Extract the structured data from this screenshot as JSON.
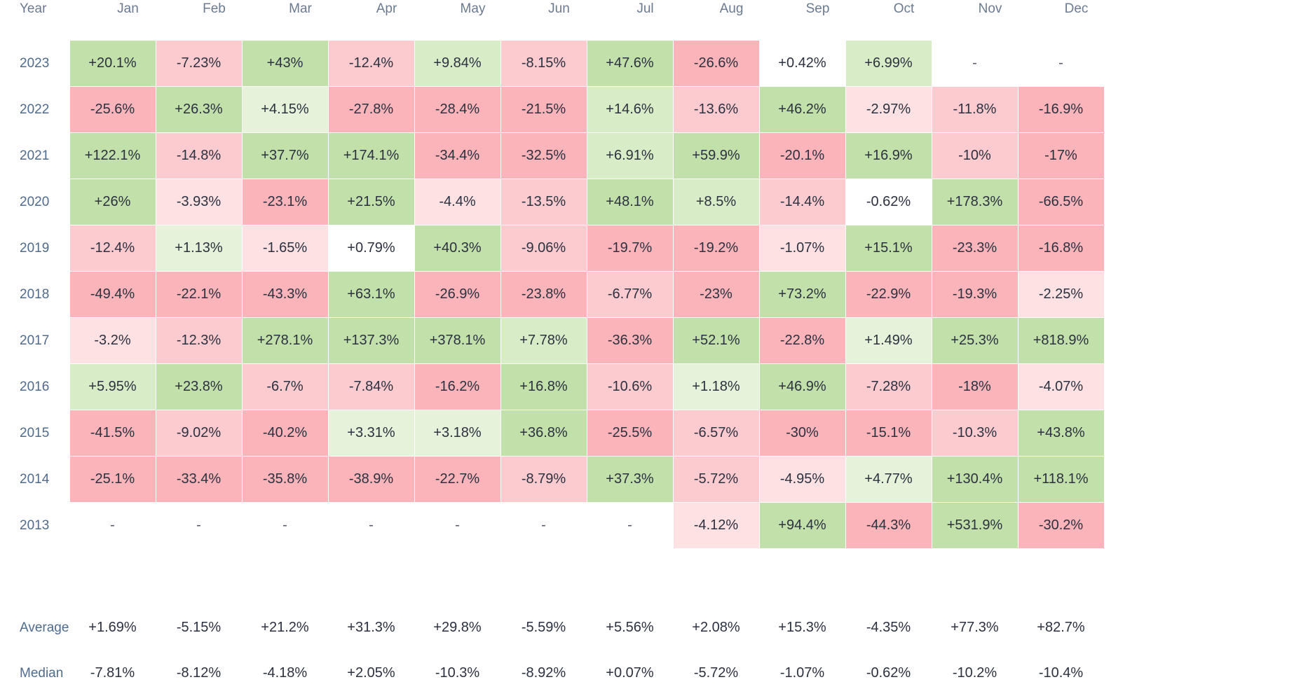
{
  "chart_data": {
    "type": "heatmap",
    "title": "",
    "row_header": "Year",
    "months": [
      "Jan",
      "Feb",
      "Mar",
      "Apr",
      "May",
      "Jun",
      "Jul",
      "Aug",
      "Sep",
      "Oct",
      "Nov",
      "Dec"
    ],
    "rows": [
      {
        "year": "2023",
        "values": [
          "+20.1%",
          "-7.23%",
          "+43%",
          "-12.4%",
          "+9.84%",
          "-8.15%",
          "+47.6%",
          "-26.6%",
          "+0.42%",
          "+6.99%",
          "-",
          "-"
        ]
      },
      {
        "year": "2022",
        "values": [
          "-25.6%",
          "+26.3%",
          "+4.15%",
          "-27.8%",
          "-28.4%",
          "-21.5%",
          "+14.6%",
          "-13.6%",
          "+46.2%",
          "-2.97%",
          "-11.8%",
          "-16.9%"
        ]
      },
      {
        "year": "2021",
        "values": [
          "+122.1%",
          "-14.8%",
          "+37.7%",
          "+174.1%",
          "-34.4%",
          "-32.5%",
          "+6.91%",
          "+59.9%",
          "-20.1%",
          "+16.9%",
          "-10%",
          "-17%"
        ]
      },
      {
        "year": "2020",
        "values": [
          "+26%",
          "-3.93%",
          "-23.1%",
          "+21.5%",
          "-4.4%",
          "-13.5%",
          "+48.1%",
          "+8.5%",
          "-14.4%",
          "-0.62%",
          "+178.3%",
          "-66.5%"
        ]
      },
      {
        "year": "2019",
        "values": [
          "-12.4%",
          "+1.13%",
          "-1.65%",
          "+0.79%",
          "+40.3%",
          "-9.06%",
          "-19.7%",
          "-19.2%",
          "-1.07%",
          "+15.1%",
          "-23.3%",
          "-16.8%"
        ]
      },
      {
        "year": "2018",
        "values": [
          "-49.4%",
          "-22.1%",
          "-43.3%",
          "+63.1%",
          "-26.9%",
          "-23.8%",
          "-6.77%",
          "-23%",
          "+73.2%",
          "-22.9%",
          "-19.3%",
          "-2.25%"
        ]
      },
      {
        "year": "2017",
        "values": [
          "-3.2%",
          "-12.3%",
          "+278.1%",
          "+137.3%",
          "+378.1%",
          "+7.78%",
          "-36.3%",
          "+52.1%",
          "-22.8%",
          "+1.49%",
          "+25.3%",
          "+818.9%"
        ]
      },
      {
        "year": "2016",
        "values": [
          "+5.95%",
          "+23.8%",
          "-6.7%",
          "-7.84%",
          "-16.2%",
          "+16.8%",
          "-10.6%",
          "+1.18%",
          "+46.9%",
          "-7.28%",
          "-18%",
          "-4.07%"
        ]
      },
      {
        "year": "2015",
        "values": [
          "-41.5%",
          "-9.02%",
          "-40.2%",
          "+3.31%",
          "+3.18%",
          "+36.8%",
          "-25.5%",
          "-6.57%",
          "-30%",
          "-15.1%",
          "-10.3%",
          "+43.8%"
        ]
      },
      {
        "year": "2014",
        "values": [
          "-25.1%",
          "-33.4%",
          "-35.8%",
          "-38.9%",
          "-22.7%",
          "-8.79%",
          "+37.3%",
          "-5.72%",
          "-4.95%",
          "+4.77%",
          "+130.4%",
          "+118.1%"
        ]
      },
      {
        "year": "2013",
        "values": [
          "-",
          "-",
          "-",
          "-",
          "-",
          "-",
          "-",
          "-4.12%",
          "+94.4%",
          "-44.3%",
          "+531.9%",
          "-30.2%"
        ]
      }
    ],
    "summary": [
      {
        "label": "Average",
        "values": [
          "+1.69%",
          "-5.15%",
          "+21.2%",
          "+31.3%",
          "+29.8%",
          "-5.59%",
          "+5.56%",
          "+2.08%",
          "+15.3%",
          "-4.35%",
          "+77.3%",
          "+82.7%"
        ]
      },
      {
        "label": "Median",
        "values": [
          "-7.81%",
          "-8.12%",
          "-4.18%",
          "+2.05%",
          "-10.3%",
          "-8.92%",
          "+0.07%",
          "-5.72%",
          "-1.07%",
          "-0.62%",
          "-10.2%",
          "-10.4%"
        ]
      }
    ],
    "color_scale": {
      "positive": [
        "#e6f2d9",
        "#d9ecc8",
        "#c1e0aa"
      ],
      "negative": [
        "#fde1e3",
        "#fccbcf",
        "#fbb4b9"
      ],
      "neutral": "#ffffff"
    }
  }
}
